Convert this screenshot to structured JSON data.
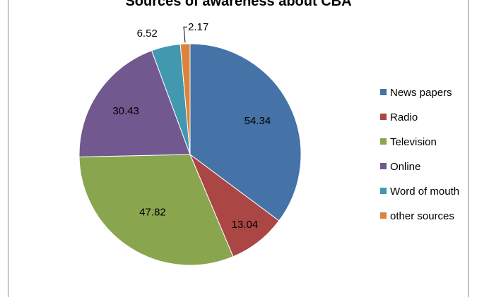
{
  "chart_data": {
    "type": "pie",
    "title": "Sources of awareness about CBA",
    "categories": [
      "News papers",
      "Radio",
      "Television",
      "Online",
      "Word of mouth",
      "other sources"
    ],
    "values": [
      54.34,
      13.04,
      47.82,
      30.43,
      6.52,
      2.17
    ],
    "data_labels": [
      "54.34",
      "13.04",
      "47.82",
      "30.43",
      "6.52",
      "2.17"
    ],
    "colors": [
      "#4572A7",
      "#AA4643",
      "#89A54E",
      "#71588F",
      "#4198AF",
      "#DB843D"
    ],
    "legend_position": "right"
  }
}
